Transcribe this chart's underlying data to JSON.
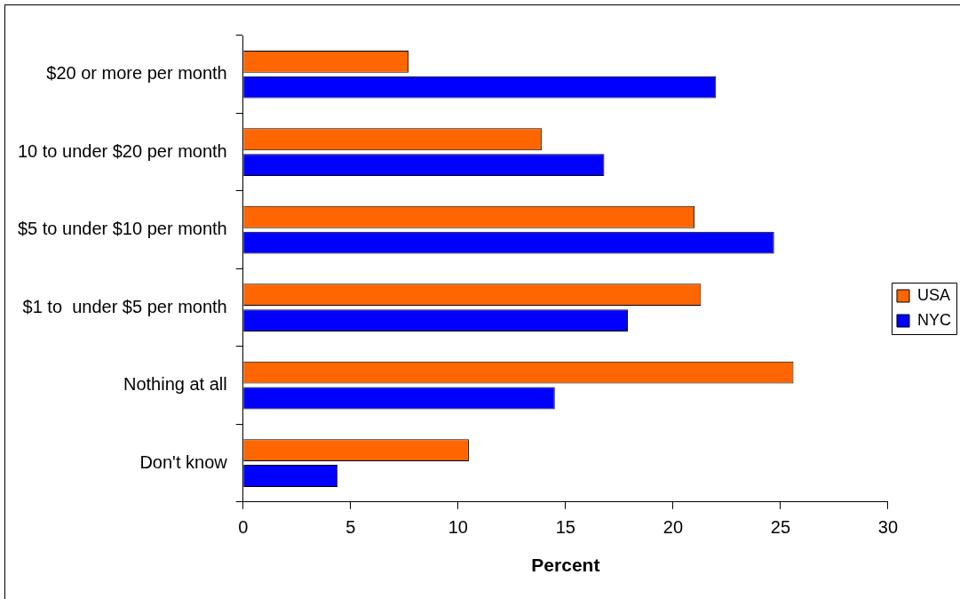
{
  "chart_data": {
    "type": "bar",
    "orientation": "horizontal",
    "xlabel": "Percent",
    "categories": [
      "$20 or more per month",
      "10 to under $20 per month",
      "$5 to under $10 per month",
      "$1 to  under $5 per month",
      "Nothing at all",
      "Don't know"
    ],
    "series": [
      {
        "name": "USA",
        "color": "#ff6600",
        "values": [
          7.7,
          13.9,
          21.0,
          21.3,
          25.6,
          10.5
        ]
      },
      {
        "name": "NYC",
        "color": "#0000ff",
        "values": [
          22.0,
          16.8,
          24.7,
          17.9,
          14.5,
          4.4
        ]
      }
    ],
    "xlim": [
      0,
      30
    ],
    "xticks": [
      0,
      5,
      10,
      15,
      20,
      25,
      30
    ],
    "grid": false,
    "legend": "right"
  }
}
